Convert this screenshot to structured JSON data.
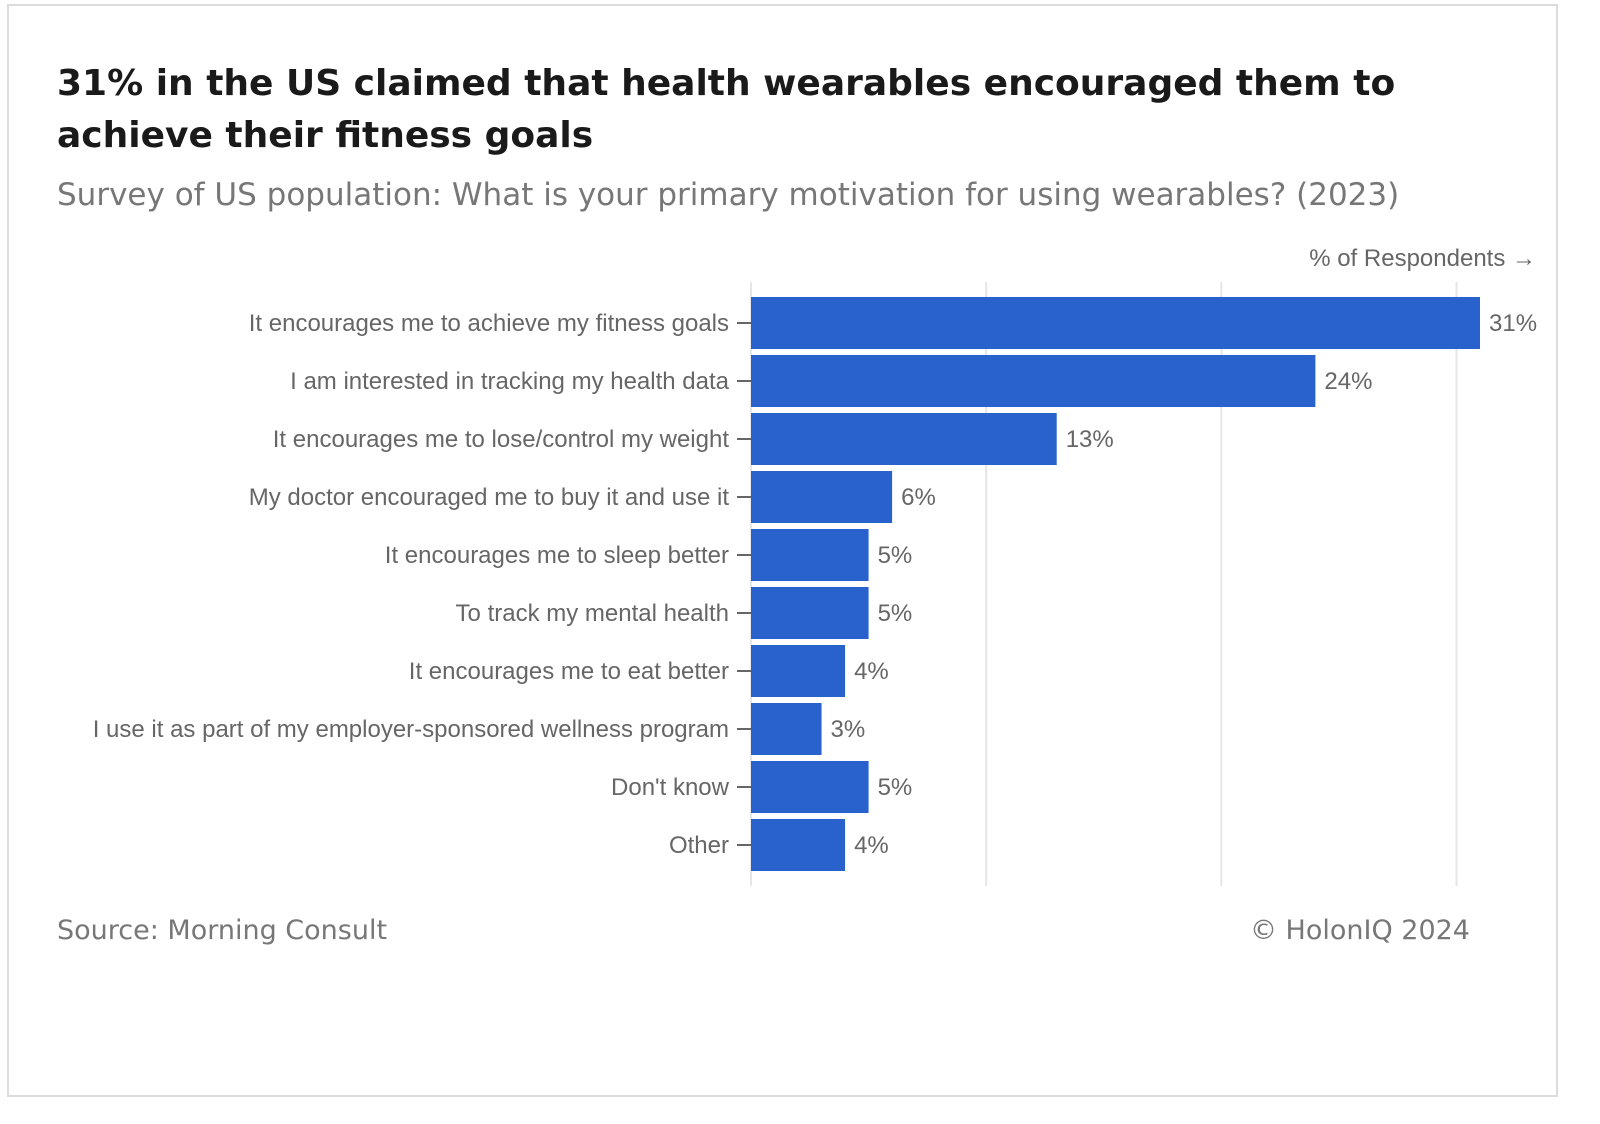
{
  "header": {
    "title": "31% in the US claimed that health wearables encouraged them to achieve their fitness goals",
    "subtitle": "Survey of US population: What is your primary motivation for using wearables? (2023)"
  },
  "footer": {
    "source": "Source: Morning Consult",
    "copyright": "© HolonIQ 2024"
  },
  "chart_data": {
    "type": "bar",
    "orientation": "horizontal",
    "x_axis_label": "% of Respondents →",
    "xlim": [
      0,
      31
    ],
    "grid": true,
    "bar_color": "#2962cc",
    "categories": [
      "It encourages me to achieve my fitness goals",
      "I am interested in tracking my health data",
      "It encourages me to lose/control my weight",
      "My doctor encouraged me to buy it and use it",
      "It encourages me to sleep better",
      "To track my mental health",
      "It encourages me to eat better",
      "I use it as part of my employer-sponsored wellness program",
      "Don't know",
      "Other"
    ],
    "values": [
      31,
      24,
      13,
      6,
      5,
      5,
      4,
      3,
      5,
      4
    ],
    "value_labels": [
      "31%",
      "24%",
      "13%",
      "6%",
      "5%",
      "5%",
      "4%",
      "3%",
      "5%",
      "4%"
    ]
  }
}
